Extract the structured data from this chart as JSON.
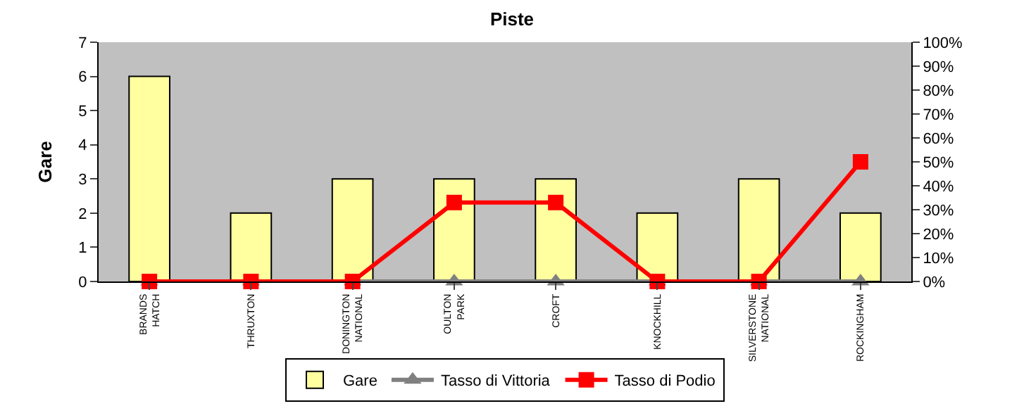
{
  "chart_data": {
    "type": "bar",
    "title": "Piste",
    "ylabel": "Gare",
    "categories": [
      "BRANDS\nHATCH",
      "THRUXTON",
      "DONINGTON\nNATIONAL",
      "OULTON\nPARK",
      "CROFT",
      "KNOCKHILL",
      "SILVERSTONE\nNATIONAL",
      "ROCKINGHAM"
    ],
    "series": [
      {
        "name": "Gare",
        "color": "#ffffa0",
        "values": [
          6,
          2,
          3,
          3,
          3,
          2,
          3,
          2
        ]
      },
      {
        "name": "Tasso di Vittoria",
        "type": "line",
        "axis": "y2",
        "color": "#808080",
        "marker": "triangle",
        "values": [
          0,
          0,
          0,
          0,
          0,
          0,
          0,
          0
        ]
      },
      {
        "name": "Tasso di Podio",
        "type": "line",
        "axis": "y2",
        "color": "#ff0000",
        "marker": "square",
        "values": [
          0,
          0,
          0,
          33,
          33,
          0,
          0,
          50
        ]
      }
    ],
    "ylim": [
      0,
      7
    ],
    "yticks": [
      0,
      1,
      2,
      3,
      4,
      5,
      6,
      7
    ],
    "y2lim": [
      0,
      100
    ],
    "y2ticks": [
      {
        "value": 0,
        "label": "0%"
      },
      {
        "value": 10,
        "label": "10%"
      },
      {
        "value": 20,
        "label": "20%"
      },
      {
        "value": 30,
        "label": "30%"
      },
      {
        "value": 40,
        "label": "40%"
      },
      {
        "value": 50,
        "label": "50%"
      },
      {
        "value": 60,
        "label": "60%"
      },
      {
        "value": 70,
        "label": "70%"
      },
      {
        "value": 80,
        "label": "80%"
      },
      {
        "value": 90,
        "label": "90%"
      },
      {
        "value": 100,
        "label": "100%"
      }
    ],
    "legend": "bottom",
    "grid": false
  }
}
